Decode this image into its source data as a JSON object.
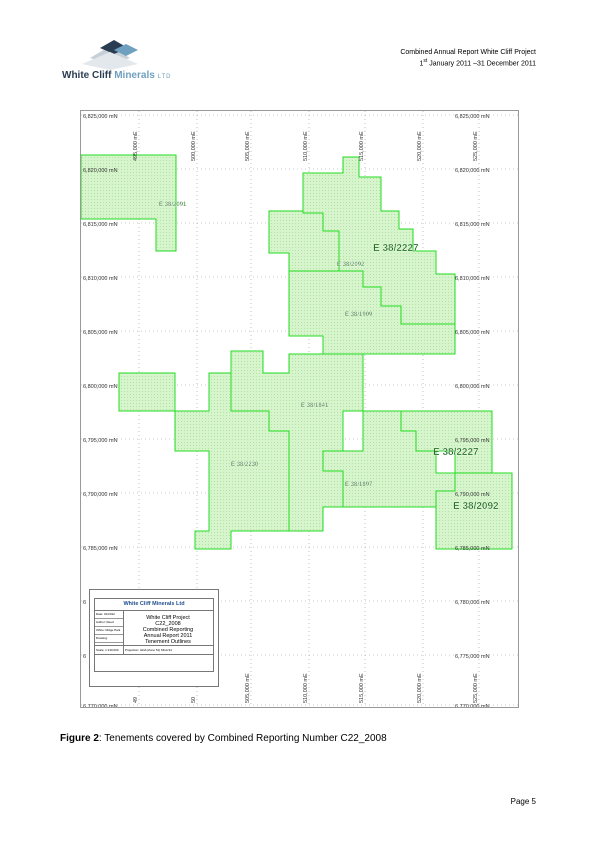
{
  "header": {
    "logo_word1": "White Cliff",
    "logo_word2": "Minerals",
    "logo_ltd": "LTD",
    "report_title": "Combined Annual Report White Cliff Project",
    "period_pre": "1",
    "period_sup": "st",
    "period_post": " January 2011 –31 December 2011"
  },
  "map": {
    "top_northings": [
      "6,825,000 mN",
      "6,825,000 mN"
    ],
    "left_northings": [
      "6,820,000 mN",
      "6,815,000 mN",
      "6,810,000 mN",
      "6,805,000 mN",
      "6,800,000 mN",
      "6,795,000 mN",
      "6,790,000 mN",
      "6,785,000 mN",
      "6",
      "6",
      "6,770,000 mN"
    ],
    "right_northings": [
      "6,820,000 mN",
      "6,815,000 mN",
      "6,810,000 mN",
      "6,805,000 mN",
      "6,800,000 mN",
      "6,795,000 mN",
      "6,790,000 mN",
      "6,785,000 mN",
      "6,780,000 mN",
      "6,775,000 mN",
      "6,770,000 mN"
    ],
    "top_eastings": [
      "495,000 mE",
      "500,000 mE",
      "505,000 mE",
      "510,000 mE",
      "515,000 mE",
      "520,000 mE",
      "525,000 mE"
    ],
    "bottom_eastings": [
      "49",
      "50",
      "505,000 mE",
      "510,000 mE",
      "515,000 mE",
      "520,000 mE",
      "525,000 mE"
    ],
    "tenements": {
      "t2091": "E 38/2091",
      "t2227a": "E 38/2227",
      "t2092a": "E 38/2092",
      "t1909": "E 38/1909",
      "t1841": "E 38/1841",
      "t2230": "E 38/2230",
      "t1897": "E 38/1897",
      "t2227b": "E 38/2227",
      "t2092b": "E 38/2092"
    },
    "colors": {
      "fill": "#d7f5cc",
      "outline": "#22dd22",
      "grid": "#999999"
    }
  },
  "legend": {
    "company": "White Cliff Minerals Ltd",
    "lines": [
      "White Cliff Project",
      "C22_2008",
      "Combined Reporting",
      "Annual Report 2011",
      "Tenement Outlines"
    ],
    "fields": [
      "Date: 01/2012",
      "Author: Reed",
      "Office: Ridge Park",
      "Drawing:"
    ],
    "scale": "Scale: 1:130,000",
    "projection": "Projection: GDA (Zone 51) MGA 94"
  },
  "caption": {
    "label": "Figure 2",
    "text": ": Tenements covered by Combined Reporting Number C22_2008"
  },
  "footer": {
    "page": "Page 5"
  }
}
